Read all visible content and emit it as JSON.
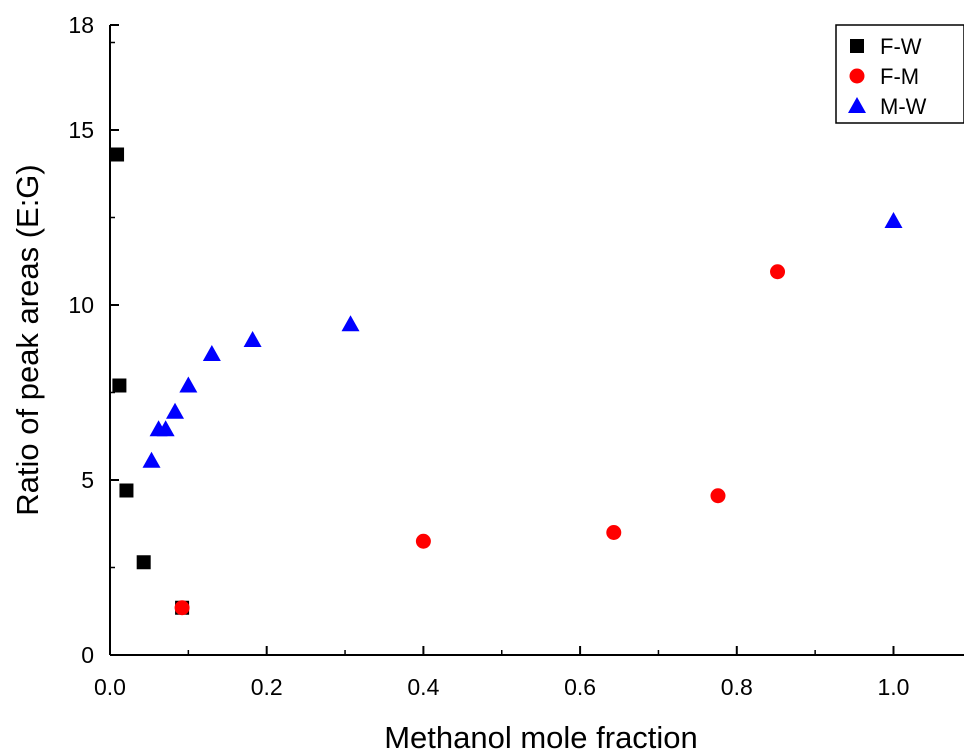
{
  "chart_data": {
    "type": "scatter",
    "xlabel": "Methanol mole fraction",
    "ylabel": "Ratio of peak areas (E:G)",
    "xlim": [
      0.0,
      1.09
    ],
    "ylim": [
      0,
      18
    ],
    "x_ticks": [
      0.0,
      0.2,
      0.4,
      0.6,
      0.8,
      1.0
    ],
    "x_tick_labels": [
      "0.0",
      "0.2",
      "0.4",
      "0.6",
      "0.8",
      "1.0"
    ],
    "y_ticks": [
      0,
      5,
      10,
      15,
      18
    ],
    "y_tick_labels": [
      "0",
      "5",
      "10",
      "15",
      "18"
    ],
    "grid": false,
    "legend_position": "top-right",
    "series": [
      {
        "name": "F-W",
        "marker": "square",
        "color": "#000000",
        "points": [
          {
            "x": 0.009,
            "y": 14.3
          },
          {
            "x": 0.012,
            "y": 7.7
          },
          {
            "x": 0.021,
            "y": 4.7
          },
          {
            "x": 0.043,
            "y": 2.65
          },
          {
            "x": 0.092,
            "y": 1.35
          }
        ]
      },
      {
        "name": "F-M",
        "marker": "circle",
        "color": "#ff0000",
        "points": [
          {
            "x": 0.092,
            "y": 1.35
          },
          {
            "x": 0.4,
            "y": 3.25
          },
          {
            "x": 0.643,
            "y": 3.5
          },
          {
            "x": 0.776,
            "y": 4.55
          },
          {
            "x": 0.852,
            "y": 10.95
          }
        ]
      },
      {
        "name": "M-W",
        "marker": "triangle",
        "color": "#0000ff",
        "points": [
          {
            "x": 0.053,
            "y": 5.55
          },
          {
            "x": 0.062,
            "y": 6.45
          },
          {
            "x": 0.071,
            "y": 6.45
          },
          {
            "x": 0.083,
            "y": 6.95
          },
          {
            "x": 0.1,
            "y": 7.7
          },
          {
            "x": 0.13,
            "y": 8.6
          },
          {
            "x": 0.182,
            "y": 9.0
          },
          {
            "x": 0.307,
            "y": 9.45
          },
          {
            "x": 1.0,
            "y": 12.4
          }
        ]
      }
    ]
  }
}
